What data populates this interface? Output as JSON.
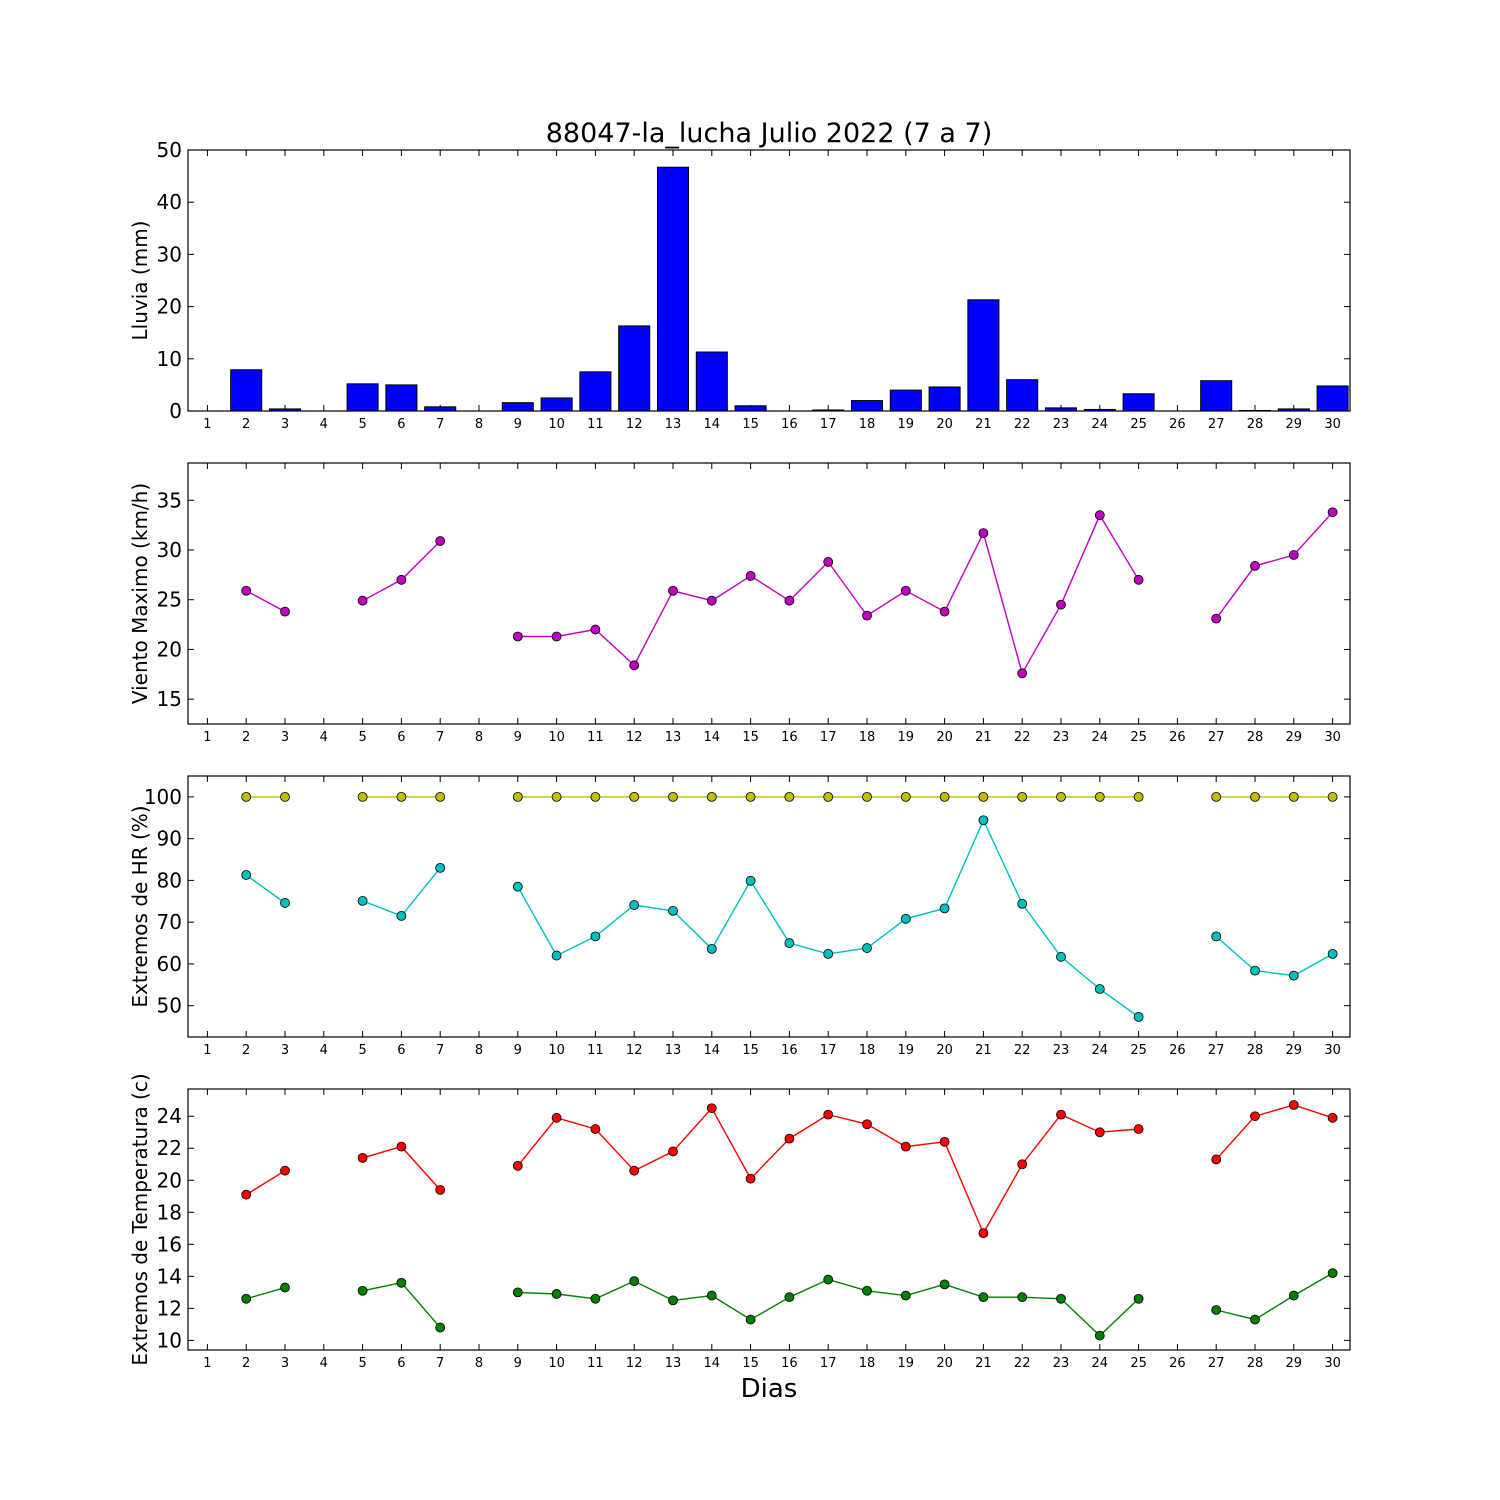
{
  "chart_data": {
    "title": "88047-la_lucha Julio 2022  (7 a 7)",
    "xlabel": "Dias",
    "x": [
      1,
      2,
      3,
      4,
      5,
      6,
      7,
      8,
      9,
      10,
      11,
      12,
      13,
      14,
      15,
      16,
      17,
      18,
      19,
      20,
      21,
      22,
      23,
      24,
      25,
      26,
      27,
      28,
      29,
      30
    ],
    "xtick_labels": [
      "1",
      "2",
      "3",
      "4",
      "5",
      "6",
      "7",
      "8",
      "9",
      "10",
      "11",
      "12",
      "13",
      "14",
      "15",
      "16",
      "17",
      "18",
      "19",
      "20",
      "21",
      "22",
      "23",
      "24",
      "25",
      "26",
      "27",
      "28",
      "29",
      "30"
    ],
    "panels": [
      {
        "type": "bar",
        "ylabel": "Lluvia (mm)",
        "ylim": [
          0,
          50
        ],
        "yticks": [
          0,
          10,
          20,
          30,
          40,
          50
        ],
        "series": [
          {
            "color": "#0000ff",
            "values": [
              0,
              7.9,
              0.4,
              0,
              5.2,
              5.0,
              0.8,
              0,
              1.6,
              2.5,
              7.5,
              16.3,
              46.7,
              11.3,
              1.0,
              0,
              0.2,
              2.0,
              4.0,
              4.6,
              21.3,
              6.0,
              0.6,
              0.3,
              3.3,
              0,
              5.8,
              0.1,
              0.4,
              4.8
            ]
          }
        ]
      },
      {
        "type": "line",
        "ylabel": "Viento Maximo (km/h)",
        "ylim": [
          12.5,
          38.75
        ],
        "yticks": [
          15,
          20,
          25,
          30,
          35
        ],
        "series": [
          {
            "color": "#bf00bf",
            "values": [
              null,
              25.9,
              23.8,
              null,
              24.9,
              27.0,
              30.9,
              null,
              21.3,
              21.3,
              22.0,
              18.4,
              25.9,
              24.9,
              27.4,
              24.9,
              28.8,
              23.4,
              25.9,
              23.8,
              31.7,
              17.6,
              24.5,
              33.5,
              27.0,
              null,
              23.1,
              28.4,
              29.5,
              33.8
            ]
          }
        ]
      },
      {
        "type": "line",
        "ylabel": "Extremos de HR (%)",
        "ylim": [
          42.5,
          105
        ],
        "yticks": [
          50,
          60,
          70,
          80,
          90,
          100
        ],
        "series": [
          {
            "color": "#bfbf00",
            "values": [
              null,
              100,
              100,
              null,
              100,
              100,
              100,
              null,
              100,
              100,
              100,
              100,
              100,
              100,
              100,
              100,
              100,
              100,
              100,
              100,
              100,
              100,
              100,
              100,
              100,
              null,
              100,
              100,
              100,
              100
            ]
          },
          {
            "color": "#00bfbf",
            "values": [
              null,
              81.3,
              74.6,
              null,
              75.1,
              71.5,
              83.0,
              null,
              78.5,
              62.0,
              66.6,
              74.1,
              72.7,
              63.6,
              79.9,
              65.0,
              62.4,
              63.8,
              70.8,
              73.3,
              94.4,
              74.4,
              61.7,
              54.0,
              47.3,
              null,
              66.6,
              58.4,
              57.2,
              62.4
            ]
          }
        ]
      },
      {
        "type": "line",
        "ylabel": "Extremos de Temperatura (c)",
        "ylim": [
          9.4,
          25.7
        ],
        "yticks": [
          10,
          12,
          14,
          16,
          18,
          20,
          22,
          24
        ],
        "series": [
          {
            "color": "#ff0000",
            "values": [
              null,
              19.1,
              20.6,
              null,
              21.4,
              22.1,
              19.4,
              null,
              20.9,
              23.9,
              23.2,
              20.6,
              21.8,
              24.5,
              20.1,
              22.6,
              24.1,
              23.5,
              22.1,
              22.4,
              16.7,
              21.0,
              24.1,
              23.0,
              23.2,
              null,
              21.3,
              24.0,
              24.7,
              23.9
            ]
          },
          {
            "color": "#007f00",
            "values": [
              null,
              12.6,
              13.3,
              null,
              13.1,
              13.6,
              10.8,
              null,
              13.0,
              12.9,
              12.6,
              13.7,
              12.5,
              12.8,
              11.3,
              12.7,
              13.8,
              13.1,
              12.8,
              13.5,
              12.7,
              12.7,
              12.6,
              10.3,
              12.6,
              null,
              11.9,
              11.3,
              12.8,
              14.2
            ]
          }
        ]
      }
    ]
  }
}
